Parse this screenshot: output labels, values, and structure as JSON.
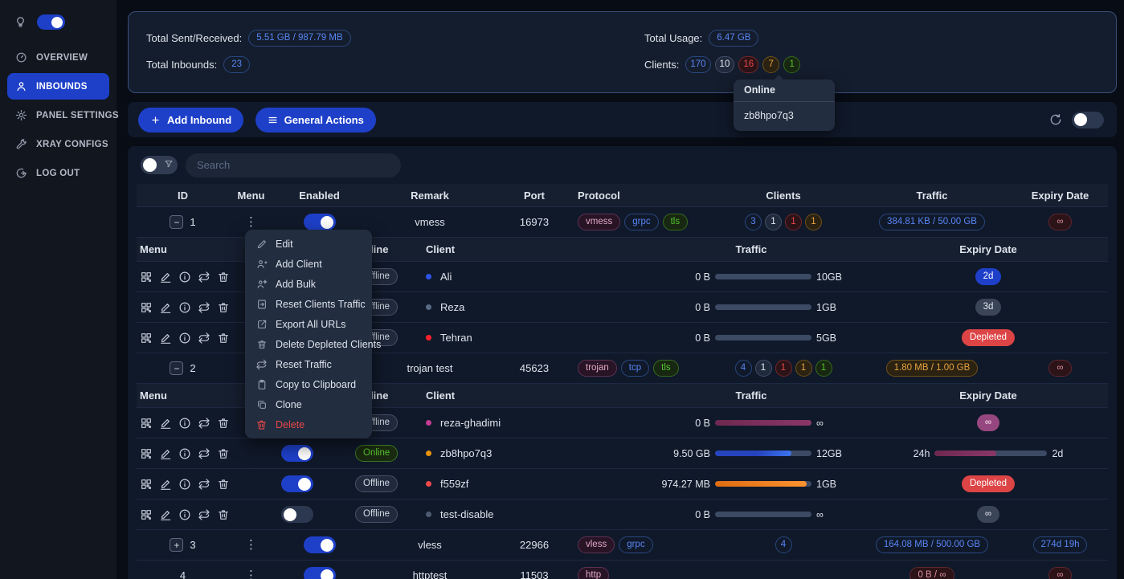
{
  "colors": {
    "accent_blue": "#1e40c9",
    "badge_blue": "#5886f5",
    "badge_red": "#e84749",
    "badge_orange": "#e8a33d",
    "badge_green": "#55c42c",
    "badge_pink": "#e3a9c6",
    "bar_blue": "#3d74f0",
    "bar_orange": "#fb9330",
    "bar_purple": "#7c2d5c"
  },
  "sidebar": {
    "theme_toggle_on": true,
    "items": [
      {
        "label": "OVERVIEW",
        "icon": "dashboard-icon",
        "active": false
      },
      {
        "label": "INBOUNDS",
        "icon": "user-icon",
        "active": true
      },
      {
        "label": "PANEL SETTINGS",
        "icon": "gear-icon",
        "active": false
      },
      {
        "label": "XRAY CONFIGS",
        "icon": "tools-icon",
        "active": false
      },
      {
        "label": "LOG OUT",
        "icon": "logout-icon",
        "active": false
      }
    ]
  },
  "stats": {
    "total_sent_received_label": "Total Sent/Received:",
    "total_sent_received": "5.51 GB / 987.79 MB",
    "total_inbounds_label": "Total Inbounds:",
    "total_inbounds": "23",
    "total_usage_label": "Total Usage:",
    "total_usage": "6.47 GB",
    "clients_label": "Clients:",
    "client_counts": [
      {
        "value": "170",
        "color": "blue"
      },
      {
        "value": "10",
        "color": "gray"
      },
      {
        "value": "16",
        "color": "red"
      },
      {
        "value": "7",
        "color": "orange"
      },
      {
        "value": "1",
        "color": "green"
      }
    ]
  },
  "online_popover": {
    "title": "Online",
    "clients": [
      "zb8hpo7q3"
    ]
  },
  "toolbar": {
    "add_inbound_label": "Add Inbound",
    "general_actions_label": "General Actions",
    "auto_refresh_on": false
  },
  "search": {
    "placeholder": "Search"
  },
  "context_menu": {
    "items": [
      {
        "label": "Edit",
        "icon": "pencil-icon"
      },
      {
        "label": "Add Client",
        "icon": "user-add-icon"
      },
      {
        "label": "Add Bulk",
        "icon": "user-star-icon"
      },
      {
        "label": "Reset Clients Traffic",
        "icon": "doc-reset-icon"
      },
      {
        "label": "Export All URLs",
        "icon": "export-icon"
      },
      {
        "label": "Delete Depleted Clients",
        "icon": "trash-clients-icon"
      },
      {
        "label": "Reset Traffic",
        "icon": "swap-icon"
      },
      {
        "label": "Copy to Clipboard",
        "icon": "clipboard-icon"
      },
      {
        "label": "Clone",
        "icon": "clone-icon"
      },
      {
        "label": "Delete",
        "icon": "trash-icon",
        "danger": true
      }
    ]
  },
  "table": {
    "headers": [
      "ID",
      "Menu",
      "Enabled",
      "Remark",
      "Port",
      "Protocol",
      "Clients",
      "Traffic",
      "Expiry Date"
    ],
    "sub_headers": {
      "menu": "Menu",
      "online": "Online",
      "client": "Client",
      "traffic": "Traffic",
      "expiry": "Expiry Date"
    },
    "inbounds": [
      {
        "id": "1",
        "expand": "minus",
        "enabled": true,
        "remark": "vmess",
        "port": "16973",
        "protocols": [
          {
            "label": "vmess",
            "color": "pink"
          },
          {
            "label": "grpc",
            "color": "blue"
          },
          {
            "label": "tls",
            "color": "green"
          }
        ],
        "client_counts": [
          {
            "value": "3",
            "color": "blue"
          },
          {
            "value": "1",
            "color": "gray"
          },
          {
            "value": "1",
            "color": "red"
          },
          {
            "value": "1",
            "color": "orange"
          }
        ],
        "traffic": {
          "text": "384.81 KB / 50.00 GB",
          "color": "blue"
        },
        "expiry": {
          "text": "∞",
          "style": "outline-pink"
        },
        "expanded": true,
        "clients": [
          {
            "name": "Ali",
            "dot_color": "#2f54eb",
            "enabled": true,
            "online": "Offline",
            "traffic": {
              "used": "0 B",
              "cap": "10GB",
              "pct": 0,
              "color": "gray"
            },
            "expiry": {
              "text": "2d",
              "style": "fill-blue"
            }
          },
          {
            "name": "Reza",
            "dot_color": "#596a85",
            "enabled": true,
            "online": "Offline",
            "traffic": {
              "used": "0 B",
              "cap": "1GB",
              "pct": 0,
              "color": "gray"
            },
            "expiry": {
              "text": "3d",
              "style": "fill-gray"
            }
          },
          {
            "name": "Tehran",
            "dot_color": "#f5222d",
            "enabled": true,
            "online": "Offline",
            "traffic": {
              "used": "0 B",
              "cap": "5GB",
              "pct": 0,
              "color": "gray"
            },
            "expiry": {
              "text": "Depleted",
              "style": "fill-red"
            }
          }
        ]
      },
      {
        "id": "2",
        "expand": "minus",
        "enabled": true,
        "remark": "trojan test",
        "port": "45623",
        "protocols": [
          {
            "label": "trojan",
            "color": "pink"
          },
          {
            "label": "tcp",
            "color": "blue"
          },
          {
            "label": "tls",
            "color": "green"
          }
        ],
        "client_counts": [
          {
            "value": "4",
            "color": "blue"
          },
          {
            "value": "1",
            "color": "gray"
          },
          {
            "value": "1",
            "color": "red"
          },
          {
            "value": "1",
            "color": "orange"
          },
          {
            "value": "1",
            "color": "green"
          }
        ],
        "traffic": {
          "text": "1.80 MB / 1.00 GB",
          "color": "orange"
        },
        "expiry": {
          "text": "∞",
          "style": "outline-pink"
        },
        "expanded": true,
        "clients": [
          {
            "name": "reza-ghadimi",
            "dot_color": "#c23b94",
            "enabled": true,
            "online": "Offline",
            "traffic": {
              "used": "0 B",
              "cap": "∞",
              "pct": 100,
              "color": "purple"
            },
            "expiry": {
              "text": "∞",
              "style": "fill-purple"
            }
          },
          {
            "name": "zb8hpo7q3",
            "dot_color": "#e8930c",
            "enabled": true,
            "online": "Online",
            "traffic": {
              "used": "9.50 GB",
              "cap": "12GB",
              "pct": 79,
              "color": "blue"
            },
            "expiry": {
              "type": "bar",
              "left": "24h",
              "right": "2d",
              "pct": 55,
              "color": "purple"
            }
          },
          {
            "name": "f559zf",
            "dot_color": "#f0484a",
            "enabled": true,
            "online": "Offline",
            "traffic": {
              "used": "974.27 MB",
              "cap": "1GB",
              "pct": 95,
              "color": "orange"
            },
            "expiry": {
              "text": "Depleted",
              "style": "fill-red"
            }
          },
          {
            "name": "test-disable",
            "dot_color": "#4d5a70",
            "enabled": false,
            "online": "Offline",
            "traffic": {
              "used": "0 B",
              "cap": "∞",
              "pct": 0,
              "color": "gray"
            },
            "expiry": {
              "text": "∞",
              "style": "fill-gray"
            }
          }
        ]
      },
      {
        "id": "3",
        "expand": "plus",
        "enabled": true,
        "remark": "vless",
        "port": "22966",
        "protocols": [
          {
            "label": "vless",
            "color": "pink"
          },
          {
            "label": "grpc",
            "color": "blue"
          }
        ],
        "client_counts": [
          {
            "value": "4",
            "color": "blue"
          }
        ],
        "traffic": {
          "text": "164.08 MB / 500.00 GB",
          "color": "blue"
        },
        "expiry": {
          "text": "274d 19h",
          "style": "outline-blue"
        },
        "expanded": false,
        "clients": []
      },
      {
        "id": "4",
        "expand": null,
        "enabled": true,
        "remark": "httptest",
        "port": "11503",
        "protocols": [
          {
            "label": "http",
            "color": "pink"
          }
        ],
        "client_counts": [],
        "traffic": {
          "text": "0 B / ∞",
          "color": "pink"
        },
        "expiry": {
          "text": "∞",
          "style": "outline-pink"
        },
        "expanded": false,
        "clients": []
      }
    ]
  }
}
